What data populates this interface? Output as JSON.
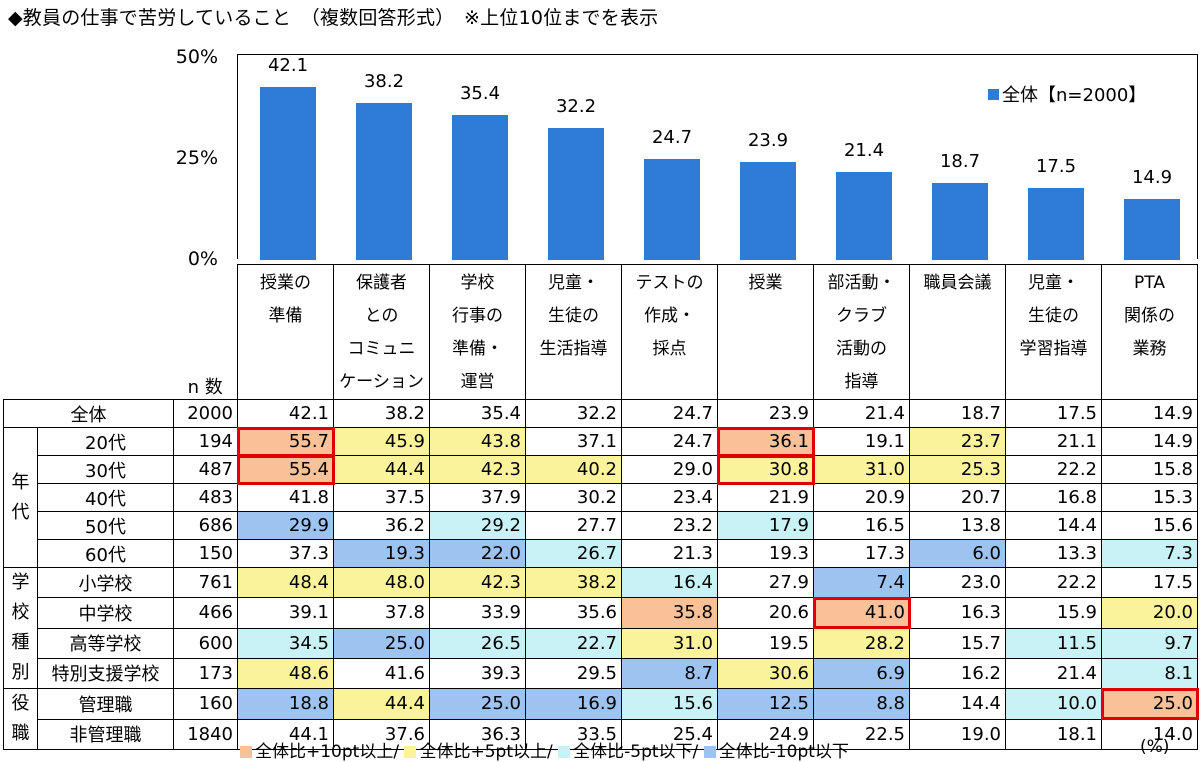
{
  "title": "◆教員の仕事で苦労していること　（複数回答形式）　※上位10位までを表示",
  "colors": {
    "bar": "#2E7CD6",
    "plus10": "#F8C197",
    "plus5": "#FBF39B",
    "minus5": "#C9F2F6",
    "minus10": "#9DC3F0"
  },
  "chart_data": {
    "type": "bar",
    "categories": [
      "授業の準備",
      "保護者とのコミュニケーション",
      "学校行事の準備・運営",
      "児童・生徒の生活指導",
      "テストの作成・採点",
      "授業",
      "部活動・クラブ活動の指導",
      "職員会議",
      "児童・生徒の学習指導",
      "PTA関係の業務"
    ],
    "series": [
      {
        "name": "全体【n=2000】",
        "values": [
          42.1,
          38.2,
          35.4,
          32.2,
          24.7,
          23.9,
          21.4,
          18.7,
          17.5,
          14.9
        ]
      }
    ],
    "value_labels": [
      "42.1",
      "38.2",
      "35.4",
      "32.2",
      "24.7",
      "23.9",
      "21.4",
      "18.7",
      "17.5",
      "14.9"
    ],
    "yticks": [
      "50%",
      "25%",
      "0%"
    ],
    "ylim": [
      0,
      50
    ],
    "legend": "top-right"
  },
  "table": {
    "n_header": "n 数",
    "col_headers": [
      [
        "授業の",
        "準備"
      ],
      [
        "保護者",
        "との",
        "コミュニ",
        "ケーション"
      ],
      [
        "学校",
        "行事の",
        "準備・",
        "運営"
      ],
      [
        "児童・",
        "生徒の",
        "生活指導"
      ],
      [
        "テストの",
        "作成・",
        "採点"
      ],
      [
        "授業"
      ],
      [
        "部活動・",
        "クラブ",
        "活動の",
        "指導"
      ],
      [
        "職員会議"
      ],
      [
        "児童・",
        "生徒の",
        "学習指導"
      ],
      [
        "PTA",
        "関係の",
        "業務"
      ]
    ],
    "groups": [
      {
        "label": "年代",
        "start": 1,
        "span": 5
      },
      {
        "label": "学校種別",
        "start": 6,
        "span": 4
      },
      {
        "label": "役職",
        "start": 10,
        "span": 2
      }
    ],
    "rows": [
      {
        "label": "全体",
        "n": "2000",
        "values": [
          "42.1",
          "38.2",
          "35.4",
          "32.2",
          "24.7",
          "23.9",
          "21.4",
          "18.7",
          "17.5",
          "14.9"
        ],
        "hl": [
          0,
          0,
          0,
          0,
          0,
          0,
          0,
          0,
          0,
          0
        ],
        "box": []
      },
      {
        "label": "20代",
        "n": "194",
        "values": [
          "55.7",
          "45.9",
          "43.8",
          "37.1",
          "24.7",
          "36.1",
          "19.1",
          "23.7",
          "21.1",
          "14.9"
        ],
        "hl": [
          2,
          1,
          1,
          0,
          0,
          2,
          0,
          1,
          0,
          0
        ],
        "box": [
          0,
          5
        ]
      },
      {
        "label": "30代",
        "n": "487",
        "values": [
          "55.4",
          "44.4",
          "42.3",
          "40.2",
          "29.0",
          "30.8",
          "31.0",
          "25.3",
          "22.2",
          "15.8"
        ],
        "hl": [
          2,
          1,
          1,
          1,
          0,
          1,
          1,
          1,
          0,
          0
        ],
        "box": [
          0,
          5
        ]
      },
      {
        "label": "40代",
        "n": "483",
        "values": [
          "41.8",
          "37.5",
          "37.9",
          "30.2",
          "23.4",
          "21.9",
          "20.9",
          "20.7",
          "16.8",
          "15.3"
        ],
        "hl": [
          0,
          0,
          0,
          0,
          0,
          0,
          0,
          0,
          0,
          0
        ],
        "box": []
      },
      {
        "label": "50代",
        "n": "686",
        "values": [
          "29.9",
          "36.2",
          "29.2",
          "27.7",
          "23.2",
          "17.9",
          "16.5",
          "13.8",
          "14.4",
          "15.6"
        ],
        "hl": [
          -2,
          0,
          -1,
          0,
          0,
          -1,
          0,
          0,
          0,
          0
        ],
        "box": []
      },
      {
        "label": "60代",
        "n": "150",
        "values": [
          "37.3",
          "19.3",
          "22.0",
          "26.7",
          "21.3",
          "19.3",
          "17.3",
          "6.0",
          "13.3",
          "7.3"
        ],
        "hl": [
          0,
          -2,
          -2,
          -1,
          0,
          0,
          0,
          -2,
          0,
          -1
        ],
        "box": []
      },
      {
        "label": "小学校",
        "n": "761",
        "values": [
          "48.4",
          "48.0",
          "42.3",
          "38.2",
          "16.4",
          "27.9",
          "7.4",
          "23.0",
          "22.2",
          "17.5"
        ],
        "hl": [
          1,
          1,
          1,
          1,
          -1,
          0,
          -2,
          0,
          0,
          0
        ],
        "box": []
      },
      {
        "label": "中学校",
        "n": "466",
        "values": [
          "39.1",
          "37.8",
          "33.9",
          "35.6",
          "35.8",
          "20.6",
          "41.0",
          "16.3",
          "15.9",
          "20.0"
        ],
        "hl": [
          0,
          0,
          0,
          0,
          2,
          0,
          2,
          0,
          0,
          1
        ],
        "box": [
          6
        ]
      },
      {
        "label": "高等学校",
        "n": "600",
        "values": [
          "34.5",
          "25.0",
          "26.5",
          "22.7",
          "31.0",
          "19.5",
          "28.2",
          "15.7",
          "11.5",
          "9.7"
        ],
        "hl": [
          -1,
          -2,
          -1,
          -1,
          1,
          0,
          1,
          0,
          -1,
          -1
        ],
        "box": []
      },
      {
        "label": "特別支援学校",
        "n": "173",
        "values": [
          "48.6",
          "41.6",
          "39.3",
          "29.5",
          "8.7",
          "30.6",
          "6.9",
          "16.2",
          "21.4",
          "8.1"
        ],
        "hl": [
          1,
          0,
          0,
          0,
          -2,
          1,
          -2,
          0,
          0,
          -1
        ],
        "box": []
      },
      {
        "label": "管理職",
        "n": "160",
        "values": [
          "18.8",
          "44.4",
          "25.0",
          "16.9",
          "15.6",
          "12.5",
          "8.8",
          "14.4",
          "10.0",
          "25.0"
        ],
        "hl": [
          -2,
          1,
          -2,
          -2,
          -1,
          -2,
          -2,
          0,
          -1,
          2
        ],
        "box": [
          9
        ]
      },
      {
        "label": "非管理職",
        "n": "1840",
        "values": [
          "44.1",
          "37.6",
          "36.3",
          "33.5",
          "25.4",
          "24.9",
          "22.5",
          "19.0",
          "18.1",
          "14.0"
        ],
        "hl": [
          0,
          0,
          0,
          0,
          0,
          0,
          0,
          0,
          0,
          0
        ],
        "box": []
      }
    ]
  },
  "footer": {
    "items": [
      "全体比+10pt以上/",
      "全体比+5pt以上/",
      "全体比-5pt以下/",
      "全体比-10pt以下"
    ],
    "unit": "(%)"
  }
}
